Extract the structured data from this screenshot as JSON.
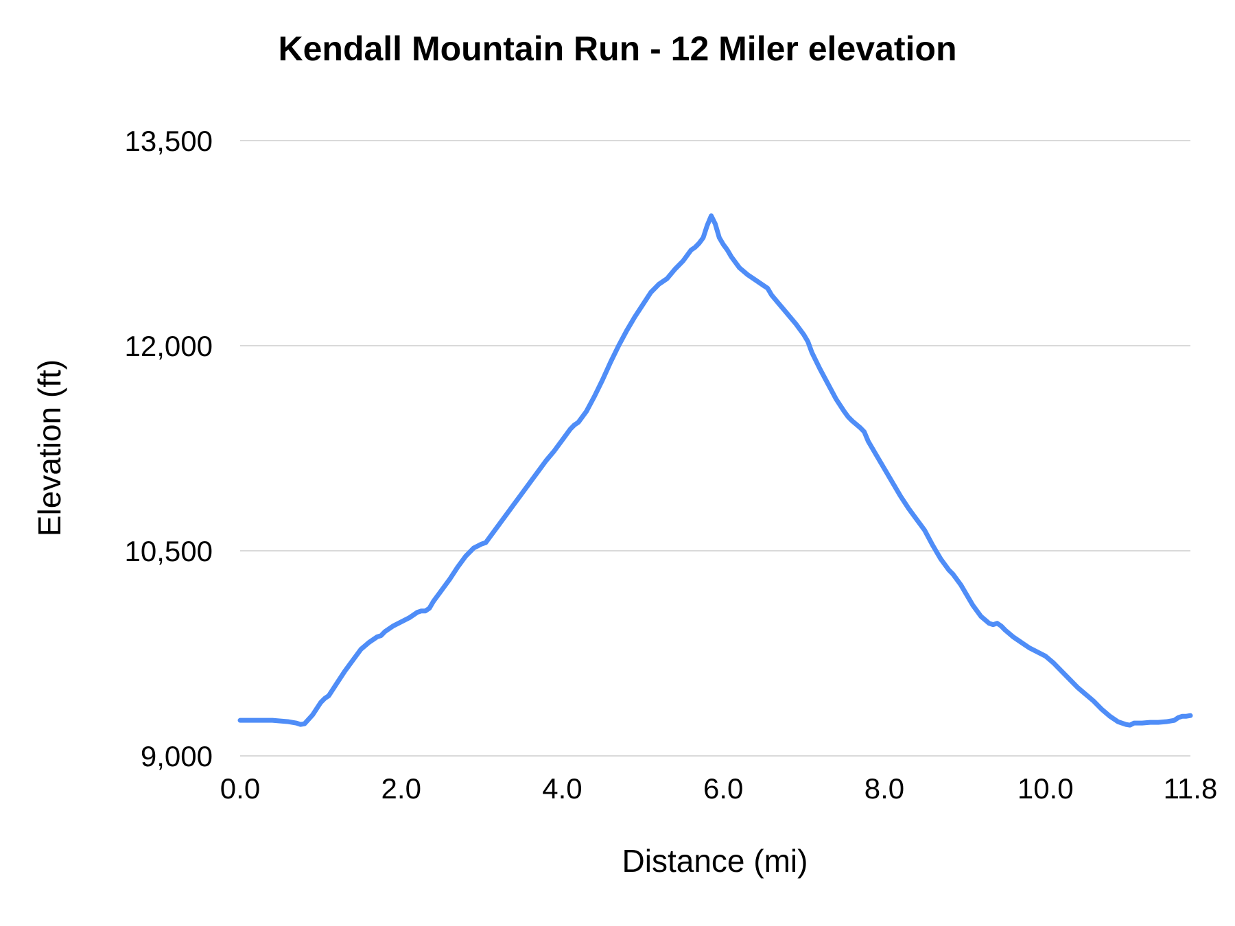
{
  "chart_data": {
    "type": "line",
    "title": "Kendall Mountain Run - 12 Miler elevation",
    "xlabel": "Distance (mi)",
    "ylabel": "Elevation (ft)",
    "xlim": [
      0,
      11.8
    ],
    "ylim": [
      9000,
      13500
    ],
    "grid": "horizontal",
    "legend": "none",
    "x_ticks": [
      {
        "value": 0.0,
        "label": "0.0"
      },
      {
        "value": 2.0,
        "label": "2.0"
      },
      {
        "value": 4.0,
        "label": "4.0"
      },
      {
        "value": 6.0,
        "label": "6.0"
      },
      {
        "value": 8.0,
        "label": "8.0"
      },
      {
        "value": 10.0,
        "label": "10.0"
      },
      {
        "value": 11.8,
        "label": "11.8"
      }
    ],
    "y_ticks": [
      {
        "value": 9000,
        "label": "9,000"
      },
      {
        "value": 10500,
        "label": "10,500"
      },
      {
        "value": 12000,
        "label": "12,000"
      },
      {
        "value": 13500,
        "label": "13,500"
      }
    ],
    "series": [
      {
        "name": "Elevation",
        "color": "#4f8df7",
        "points": [
          [
            0.0,
            9260
          ],
          [
            0.1,
            9260
          ],
          [
            0.2,
            9260
          ],
          [
            0.3,
            9260
          ],
          [
            0.4,
            9260
          ],
          [
            0.5,
            9255
          ],
          [
            0.6,
            9250
          ],
          [
            0.7,
            9240
          ],
          [
            0.75,
            9230
          ],
          [
            0.8,
            9235
          ],
          [
            0.9,
            9300
          ],
          [
            1.0,
            9390
          ],
          [
            1.05,
            9420
          ],
          [
            1.1,
            9440
          ],
          [
            1.2,
            9530
          ],
          [
            1.3,
            9620
          ],
          [
            1.4,
            9700
          ],
          [
            1.5,
            9780
          ],
          [
            1.6,
            9830
          ],
          [
            1.7,
            9870
          ],
          [
            1.75,
            9880
          ],
          [
            1.8,
            9910
          ],
          [
            1.9,
            9950
          ],
          [
            2.0,
            9980
          ],
          [
            2.1,
            10010
          ],
          [
            2.2,
            10050
          ],
          [
            2.25,
            10060
          ],
          [
            2.3,
            10060
          ],
          [
            2.35,
            10080
          ],
          [
            2.4,
            10130
          ],
          [
            2.5,
            10210
          ],
          [
            2.6,
            10290
          ],
          [
            2.7,
            10380
          ],
          [
            2.8,
            10460
          ],
          [
            2.9,
            10520
          ],
          [
            3.0,
            10550
          ],
          [
            3.05,
            10560
          ],
          [
            3.1,
            10600
          ],
          [
            3.2,
            10680
          ],
          [
            3.3,
            10760
          ],
          [
            3.4,
            10840
          ],
          [
            3.5,
            10920
          ],
          [
            3.6,
            11000
          ],
          [
            3.7,
            11080
          ],
          [
            3.8,
            11160
          ],
          [
            3.9,
            11230
          ],
          [
            4.0,
            11310
          ],
          [
            4.1,
            11390
          ],
          [
            4.15,
            11420
          ],
          [
            4.2,
            11440
          ],
          [
            4.3,
            11520
          ],
          [
            4.4,
            11630
          ],
          [
            4.5,
            11750
          ],
          [
            4.6,
            11880
          ],
          [
            4.7,
            12000
          ],
          [
            4.8,
            12110
          ],
          [
            4.9,
            12210
          ],
          [
            5.0,
            12300
          ],
          [
            5.1,
            12390
          ],
          [
            5.2,
            12450
          ],
          [
            5.3,
            12490
          ],
          [
            5.4,
            12560
          ],
          [
            5.5,
            12620
          ],
          [
            5.55,
            12660
          ],
          [
            5.6,
            12700
          ],
          [
            5.65,
            12720
          ],
          [
            5.7,
            12750
          ],
          [
            5.75,
            12790
          ],
          [
            5.8,
            12880
          ],
          [
            5.85,
            12950
          ],
          [
            5.9,
            12890
          ],
          [
            5.95,
            12790
          ],
          [
            6.0,
            12740
          ],
          [
            6.05,
            12700
          ],
          [
            6.1,
            12650
          ],
          [
            6.2,
            12570
          ],
          [
            6.3,
            12520
          ],
          [
            6.4,
            12480
          ],
          [
            6.5,
            12440
          ],
          [
            6.55,
            12420
          ],
          [
            6.6,
            12370
          ],
          [
            6.7,
            12300
          ],
          [
            6.8,
            12230
          ],
          [
            6.9,
            12160
          ],
          [
            7.0,
            12080
          ],
          [
            7.05,
            12030
          ],
          [
            7.1,
            11950
          ],
          [
            7.2,
            11830
          ],
          [
            7.3,
            11720
          ],
          [
            7.4,
            11610
          ],
          [
            7.5,
            11520
          ],
          [
            7.55,
            11480
          ],
          [
            7.6,
            11450
          ],
          [
            7.7,
            11400
          ],
          [
            7.75,
            11370
          ],
          [
            7.8,
            11300
          ],
          [
            7.9,
            11200
          ],
          [
            8.0,
            11100
          ],
          [
            8.1,
            11000
          ],
          [
            8.2,
            10900
          ],
          [
            8.3,
            10810
          ],
          [
            8.4,
            10730
          ],
          [
            8.5,
            10650
          ],
          [
            8.6,
            10540
          ],
          [
            8.7,
            10440
          ],
          [
            8.8,
            10360
          ],
          [
            8.85,
            10330
          ],
          [
            8.9,
            10290
          ],
          [
            8.95,
            10250
          ],
          [
            9.0,
            10200
          ],
          [
            9.1,
            10100
          ],
          [
            9.2,
            10020
          ],
          [
            9.3,
            9970
          ],
          [
            9.35,
            9960
          ],
          [
            9.4,
            9970
          ],
          [
            9.45,
            9950
          ],
          [
            9.5,
            9920
          ],
          [
            9.6,
            9870
          ],
          [
            9.7,
            9830
          ],
          [
            9.8,
            9790
          ],
          [
            9.9,
            9760
          ],
          [
            10.0,
            9730
          ],
          [
            10.1,
            9680
          ],
          [
            10.2,
            9620
          ],
          [
            10.3,
            9560
          ],
          [
            10.4,
            9500
          ],
          [
            10.5,
            9450
          ],
          [
            10.6,
            9400
          ],
          [
            10.7,
            9340
          ],
          [
            10.8,
            9290
          ],
          [
            10.9,
            9250
          ],
          [
            11.0,
            9230
          ],
          [
            11.05,
            9225
          ],
          [
            11.1,
            9240
          ],
          [
            11.2,
            9240
          ],
          [
            11.3,
            9245
          ],
          [
            11.4,
            9245
          ],
          [
            11.5,
            9250
          ],
          [
            11.6,
            9260
          ],
          [
            11.65,
            9280
          ],
          [
            11.7,
            9290
          ],
          [
            11.75,
            9290
          ],
          [
            11.8,
            9295
          ]
        ]
      }
    ]
  }
}
